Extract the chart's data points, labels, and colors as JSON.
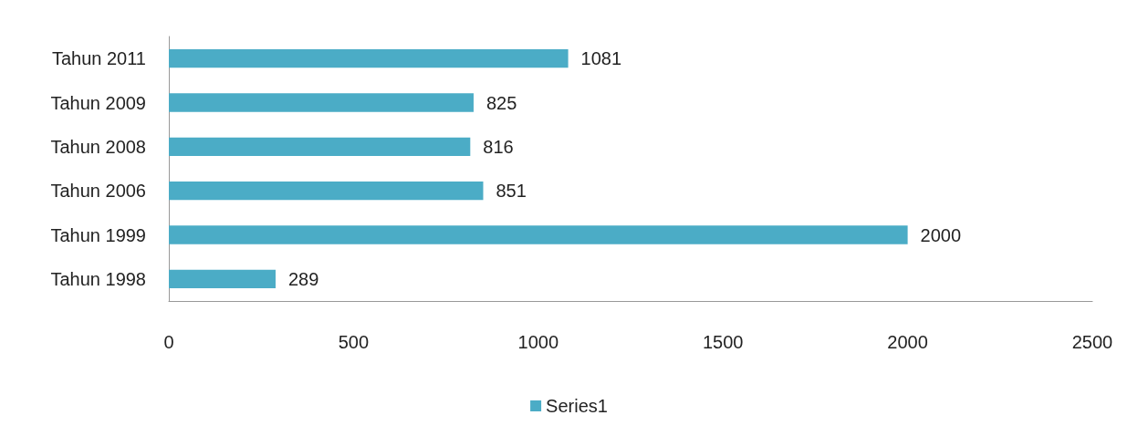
{
  "chart_data": {
    "type": "bar",
    "orientation": "horizontal",
    "categories": [
      "Tahun 2011",
      "Tahun 2009",
      "Tahun 2008",
      "Tahun 2006",
      "Tahun 1999",
      "Tahun 1998"
    ],
    "series": [
      {
        "name": "Series1",
        "color": "#4bacc6",
        "values": [
          1081,
          825,
          816,
          851,
          2000,
          289
        ]
      }
    ],
    "xlim": [
      0,
      2500
    ],
    "xticks": [
      0,
      500,
      1000,
      1500,
      2000,
      2500
    ],
    "data_labels": true,
    "grid": false,
    "legend": "bottom"
  }
}
